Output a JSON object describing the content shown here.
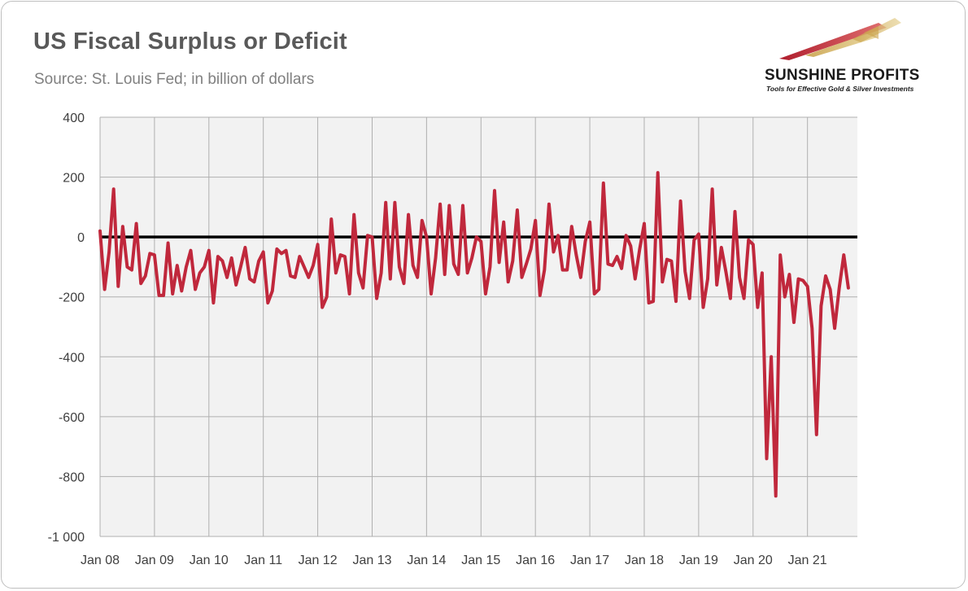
{
  "title": "US Fiscal Surplus or Deficit",
  "subtitle": "Source: St. Louis Fed; in billion of dollars",
  "logo": {
    "name": "SUNSHINE PROFITS",
    "tagline": "Tools for Effective Gold & Silver Investments"
  },
  "colors": {
    "series": "#c0283c",
    "zero_line": "#000000",
    "grid": "#b0b0b0",
    "plot_bg": "#f2f2f2"
  },
  "chart_data": {
    "type": "line",
    "title": "US Fiscal Surplus or Deficit",
    "xlabel": "",
    "ylabel": "",
    "ylim": [
      -1000,
      400
    ],
    "y_ticks": [
      400,
      200,
      0,
      -200,
      -400,
      -600,
      -800,
      -1000
    ],
    "y_tick_labels": [
      "400",
      "200",
      "0",
      "-200",
      "-400",
      "-600",
      "-800",
      "-1 000"
    ],
    "x_tick_labels": [
      "Jan 08",
      "Jan 09",
      "Jan 10",
      "Jan 11",
      "Jan 12",
      "Jan 13",
      "Jan 14",
      "Jan 15",
      "Jan 16",
      "Jan 17",
      "Jan 18",
      "Jan 19",
      "Jan 20",
      "Jan 21"
    ],
    "x_start": "2008-01",
    "grid": true,
    "legend": "none",
    "series": [
      {
        "values": [
          20,
          -175,
          -50,
          160,
          -165,
          35,
          -100,
          -110,
          45,
          -155,
          -130,
          -55,
          -60,
          -195,
          -195,
          -20,
          -190,
          -95,
          -180,
          -100,
          -45,
          -175,
          -120,
          -100,
          -45,
          -220,
          -65,
          -80,
          -135,
          -70,
          -160,
          -100,
          -35,
          -140,
          -150,
          -80,
          -50,
          -220,
          -180,
          -40,
          -55,
          -45,
          -130,
          -135,
          -65,
          -100,
          -135,
          -95,
          -25,
          -235,
          -200,
          60,
          -120,
          -60,
          -65,
          -190,
          75,
          -120,
          -170,
          5,
          0,
          -205,
          -120,
          115,
          -140,
          115,
          -100,
          -155,
          75,
          -95,
          -135,
          55,
          0,
          -190,
          -70,
          110,
          -125,
          105,
          -90,
          -125,
          105,
          -120,
          -70,
          0,
          -15,
          -190,
          -100,
          155,
          -85,
          50,
          -150,
          -80,
          90,
          -135,
          -90,
          -40,
          55,
          -195,
          -110,
          110,
          -50,
          5,
          -110,
          -110,
          35,
          -60,
          -135,
          -15,
          50,
          -190,
          -175,
          180,
          -90,
          -95,
          -65,
          -105,
          5,
          -30,
          -140,
          -40,
          45,
          -220,
          -215,
          215,
          -150,
          -75,
          -80,
          -215,
          120,
          -115,
          -205,
          -10,
          10,
          -235,
          -140,
          160,
          -160,
          -35,
          -115,
          -205,
          85,
          -135,
          -205,
          -10,
          -25,
          -235,
          -120,
          -740,
          -400,
          -865,
          -60,
          -200,
          -125,
          -285,
          -140,
          -145,
          -165,
          -305,
          -660,
          -230,
          -130,
          -175,
          -305,
          -170,
          -60,
          -170
        ]
      }
    ]
  }
}
